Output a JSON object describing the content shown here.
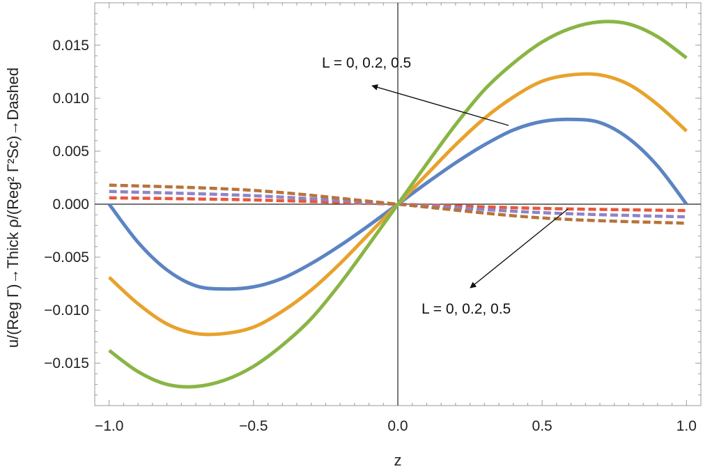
{
  "chart_data": {
    "type": "line",
    "xlabel": "z",
    "ylabel": "u/(Reg Γ)→Thick ρ/(Reg² Γ²Sc)→Dashed",
    "xlim": [
      -1.05,
      1.05
    ],
    "ylim": [
      -0.019,
      0.019
    ],
    "x_ticks": [
      "-1.0",
      "-0.5",
      "0.0",
      "0.5",
      "1.0"
    ],
    "y_ticks": [
      "0.015",
      "0.010",
      "0.005",
      "0.000",
      "-0.005",
      "-0.010",
      "-0.015"
    ],
    "grid": false,
    "series": [
      {
        "style": "solid",
        "color": "#5b84c2",
        "x": [
          -1.0,
          -0.9,
          -0.8,
          -0.7,
          -0.6,
          -0.5,
          -0.4,
          -0.3,
          -0.2,
          -0.1,
          0.0,
          0.1,
          0.2,
          0.3,
          0.4,
          0.5,
          0.6,
          0.7,
          0.8,
          0.9,
          1.0
        ],
        "values": [
          0.0,
          -0.0036,
          -0.0062,
          -0.0077,
          -0.008,
          -0.0078,
          -0.007,
          -0.0056,
          -0.0039,
          -0.002,
          0.0,
          0.002,
          0.0039,
          0.0056,
          0.007,
          0.0078,
          0.008,
          0.0077,
          0.0062,
          0.0036,
          0.0
        ]
      },
      {
        "style": "solid",
        "color": "#e8a22c",
        "x": [
          -1.0,
          -0.9,
          -0.8,
          -0.7,
          -0.6,
          -0.5,
          -0.4,
          -0.3,
          -0.2,
          -0.1,
          0.0,
          0.1,
          0.2,
          0.3,
          0.4,
          0.5,
          0.6,
          0.7,
          0.8,
          0.9,
          1.0
        ],
        "values": [
          -0.0069,
          -0.0094,
          -0.0113,
          -0.0122,
          -0.0122,
          -0.0116,
          -0.0101,
          -0.0081,
          -0.0056,
          -0.0028,
          0.0,
          0.0028,
          0.0056,
          0.0081,
          0.0101,
          0.0116,
          0.0122,
          0.0122,
          0.0113,
          0.0094,
          0.0069
        ]
      },
      {
        "style": "solid",
        "color": "#89b545",
        "x": [
          -1.0,
          -0.9,
          -0.8,
          -0.7,
          -0.6,
          -0.5,
          -0.4,
          -0.3,
          -0.2,
          -0.1,
          0.0,
          0.1,
          0.2,
          0.3,
          0.4,
          0.5,
          0.6,
          0.7,
          0.8,
          0.9,
          1.0
        ],
        "values": [
          -0.0138,
          -0.0158,
          -0.017,
          -0.0172,
          -0.0166,
          -0.0153,
          -0.0133,
          -0.0108,
          -0.0075,
          -0.0038,
          0.0,
          0.0038,
          0.0075,
          0.0108,
          0.0133,
          0.0153,
          0.0166,
          0.0172,
          0.017,
          0.0158,
          0.0138
        ]
      },
      {
        "style": "dashed",
        "color": "#e8573a",
        "x": [
          -1.0,
          -0.5,
          0.0,
          0.5,
          1.0
        ],
        "values": [
          0.0006,
          0.0004,
          0.0,
          -0.0004,
          -0.0006
        ]
      },
      {
        "style": "dashed",
        "color": "#8e84c8",
        "x": [
          -1.0,
          -0.5,
          0.0,
          0.5,
          1.0
        ],
        "values": [
          0.0012,
          0.0008,
          0.0,
          -0.0008,
          -0.0012
        ]
      },
      {
        "style": "dashed",
        "color": "#b8733a",
        "x": [
          -1.0,
          -0.5,
          0.0,
          0.5,
          1.0
        ],
        "values": [
          0.0018,
          0.0013,
          0.0,
          -0.0013,
          -0.0018
        ]
      }
    ],
    "annotations": [
      {
        "text": "L = 0, 0.2, 0.5",
        "target": "solid curves"
      },
      {
        "text": "L = 0, 0.2, 0.5",
        "target": "dashed curves"
      }
    ]
  }
}
